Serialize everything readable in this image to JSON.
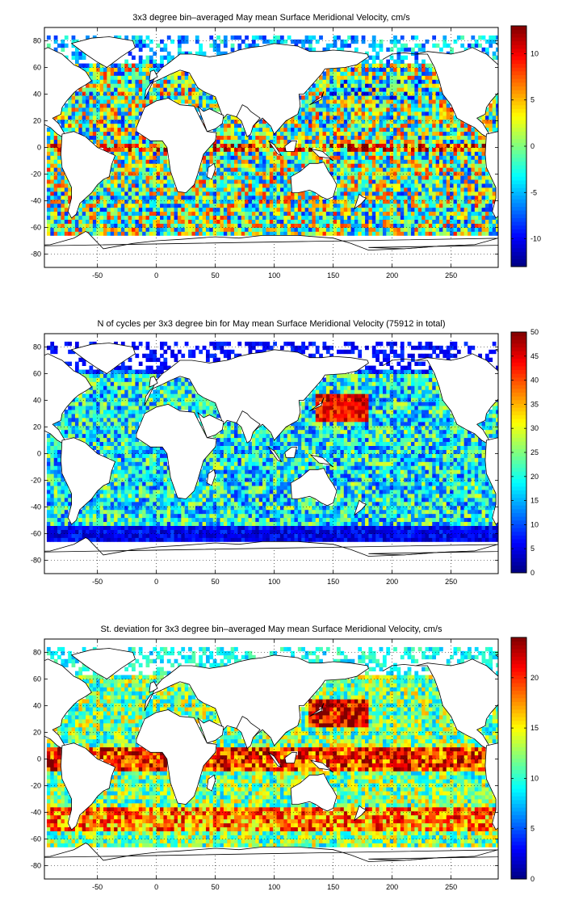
{
  "figure": {
    "background": "#ffffff"
  },
  "chart_data": [
    {
      "type": "heatmap",
      "title": "3x3 degree bin–averaged May mean Surface Meridional Velocity, cm/s",
      "xlabel": "",
      "ylabel": "",
      "xlim": [
        -95,
        290
      ],
      "ylim": [
        -90,
        90
      ],
      "xticks": [
        -50,
        0,
        50,
        100,
        150,
        200,
        250
      ],
      "yticks": [
        -80,
        -60,
        -40,
        -20,
        0,
        20,
        40,
        60,
        80
      ],
      "grid": true,
      "grid_style": "dotted",
      "bin_size_deg": 3,
      "color_range": [
        -13,
        13
      ],
      "colorbar_ticks": [
        -10,
        -5,
        0,
        5,
        10
      ],
      "colormap": "jet",
      "field": "velocity",
      "seed": 11
    },
    {
      "type": "heatmap",
      "title": "N of cycles per 3x3 degree bin for May mean Surface Meridional Velocity (75912 in total)",
      "xlabel": "",
      "ylabel": "",
      "xlim": [
        -95,
        290
      ],
      "ylim": [
        -90,
        90
      ],
      "xticks": [
        -50,
        0,
        50,
        100,
        150,
        200,
        250
      ],
      "yticks": [
        -80,
        -60,
        -40,
        -20,
        0,
        20,
        40,
        60,
        80
      ],
      "grid": true,
      "grid_style": "dotted",
      "bin_size_deg": 3,
      "color_range": [
        0,
        50
      ],
      "colorbar_ticks": [
        0,
        5,
        10,
        15,
        20,
        25,
        30,
        35,
        40,
        45,
        50
      ],
      "colormap": "jet",
      "field": "count",
      "total_cycles": 75912,
      "seed": 23
    },
    {
      "type": "heatmap",
      "title": "St. deviation for 3x3 degree bin–averaged May mean Surface Meridional Velocity, cm/s",
      "xlabel": "",
      "ylabel": "",
      "xlim": [
        -95,
        290
      ],
      "ylim": [
        -90,
        90
      ],
      "xticks": [
        -50,
        0,
        50,
        100,
        150,
        200,
        250
      ],
      "yticks": [
        -80,
        -60,
        -40,
        -20,
        0,
        20,
        40,
        60,
        80
      ],
      "grid": true,
      "grid_style": "dotted",
      "bin_size_deg": 3,
      "color_range": [
        0,
        24
      ],
      "colorbar_ticks": [
        0,
        5,
        10,
        15,
        20
      ],
      "colormap": "jet",
      "field": "stdev",
      "seed": 37
    }
  ],
  "land_outlines": [
    {
      "name": "north-america",
      "lon": [
        -168,
        -160,
        -150,
        -140,
        -130,
        -124,
        -120,
        -117,
        -110,
        -105,
        -97,
        -90,
        -84,
        -80,
        -77,
        -83,
        -88,
        -81,
        -80,
        -76,
        -70,
        -66,
        -60,
        -55,
        -60,
        -65,
        -70,
        -75,
        -80,
        -85,
        -92,
        -100,
        -110,
        -120,
        -130,
        -140,
        -150,
        -160,
        -168
      ],
      "lat": [
        66,
        70,
        71,
        70,
        70,
        60,
        50,
        40,
        32,
        22,
        18,
        15,
        10,
        8,
        9,
        18,
        22,
        25,
        30,
        35,
        41,
        44,
        47,
        50,
        57,
        60,
        62,
        66,
        70,
        72,
        75,
        72,
        70,
        71,
        72,
        70,
        71,
        70,
        66
      ]
    },
    {
      "name": "greenland",
      "lon": [
        -72,
        -55,
        -40,
        -20,
        -18,
        -30,
        -42,
        -50,
        -60,
        -72
      ],
      "lat": [
        78,
        82,
        83,
        80,
        75,
        68,
        60,
        64,
        70,
        78
      ]
    },
    {
      "name": "south-america",
      "lon": [
        -80,
        -75,
        -70,
        -60,
        -50,
        -45,
        -35,
        -38,
        -40,
        -45,
        -50,
        -55,
        -60,
        -65,
        -68,
        -72,
        -75,
        -72,
        -72,
        -80,
        -81,
        -80
      ],
      "lat": [
        10,
        11,
        12,
        8,
        0,
        -2,
        -6,
        -13,
        -22,
        -24,
        -28,
        -34,
        -38,
        -42,
        -50,
        -53,
        -48,
        -38,
        -30,
        -15,
        -5,
        10
      ]
    },
    {
      "name": "africa",
      "lon": [
        -17,
        -10,
        0,
        10,
        20,
        32,
        40,
        43,
        51,
        50,
        40,
        35,
        32,
        25,
        18,
        12,
        9,
        5,
        -5,
        -17,
        -17
      ],
      "lat": [
        15,
        30,
        35,
        37,
        32,
        31,
        17,
        12,
        11,
        5,
        -5,
        -20,
        -28,
        -34,
        -33,
        -18,
        0,
        5,
        5,
        12,
        15
      ]
    },
    {
      "name": "madagascar",
      "lon": [
        44,
        49,
        50,
        47,
        43,
        44
      ],
      "lat": [
        -15,
        -12,
        -16,
        -24,
        -22,
        -15
      ]
    },
    {
      "name": "eurasia",
      "lon": [
        -10,
        -9,
        -5,
        0,
        5,
        12,
        20,
        28,
        35,
        40,
        50,
        55,
        57,
        60,
        68,
        75,
        80,
        90,
        97,
        100,
        105,
        110,
        120,
        122,
        121,
        125,
        130,
        140,
        143,
        160,
        170,
        180,
        179,
        165,
        150,
        140,
        130,
        120,
        110,
        100,
        90,
        80,
        70,
        60,
        45,
        30,
        20,
        10,
        5,
        0,
        -10
      ],
      "lat": [
        36,
        43,
        48,
        50,
        52,
        55,
        58,
        56,
        45,
        42,
        38,
        26,
        22,
        25,
        23,
        20,
        15,
        22,
        16,
        10,
        15,
        20,
        25,
        31,
        40,
        40,
        45,
        55,
        59,
        60,
        62,
        68,
        70,
        72,
        73,
        72,
        72,
        76,
        77,
        78,
        76,
        75,
        73,
        70,
        68,
        70,
        70,
        63,
        60,
        55,
        36
      ]
    },
    {
      "name": "arabia",
      "lon": [
        35,
        40,
        45,
        52,
        57,
        56,
        50,
        43,
        35
      ],
      "lat": [
        31,
        27,
        29,
        26,
        24,
        18,
        14,
        12,
        31
      ]
    },
    {
      "name": "india",
      "lon": [
        68,
        72,
        77,
        80,
        82,
        88,
        80,
        77,
        73,
        68
      ],
      "lat": [
        23,
        20,
        8,
        10,
        16,
        22,
        27,
        30,
        32,
        23
      ]
    },
    {
      "name": "australia",
      "lon": [
        114,
        122,
        130,
        137,
        142,
        146,
        150,
        153,
        150,
        145,
        140,
        135,
        130,
        120,
        115,
        114
      ],
      "lat": [
        -22,
        -18,
        -12,
        -12,
        -11,
        -18,
        -23,
        -28,
        -37,
        -39,
        -37,
        -34,
        -32,
        -34,
        -34,
        -22
      ]
    },
    {
      "name": "new-zealand",
      "lon": [
        172,
        175,
        178,
        174,
        168,
        172
      ],
      "lat": [
        -35,
        -37,
        -38,
        -42,
        -46,
        -35
      ]
    },
    {
      "name": "borneo",
      "lon": [
        109,
        115,
        119,
        117,
        110,
        109
      ],
      "lat": [
        1,
        5,
        5,
        -3,
        -3,
        1
      ]
    },
    {
      "name": "sumatra",
      "lon": [
        95,
        100,
        106,
        103,
        95
      ],
      "lat": [
        5,
        2,
        -6,
        -5,
        5
      ]
    },
    {
      "name": "new-guinea",
      "lon": [
        131,
        141,
        150,
        146,
        138,
        131
      ],
      "lat": [
        -1,
        -3,
        -10,
        -8,
        -7,
        -1
      ]
    },
    {
      "name": "japan",
      "lon": [
        130,
        135,
        140,
        142,
        140,
        135,
        130
      ],
      "lat": [
        32,
        34,
        36,
        42,
        38,
        35,
        32
      ]
    },
    {
      "name": "uk",
      "lon": [
        -6,
        -3,
        1,
        -2,
        -5,
        -6
      ],
      "lat": [
        50,
        51,
        53,
        58,
        57,
        50
      ]
    },
    {
      "name": "antarctica",
      "lon": [
        -180,
        -150,
        -120,
        -90,
        -70,
        -60,
        -58,
        -45,
        -20,
        0,
        20,
        50,
        70,
        90,
        120,
        150,
        165,
        180,
        210,
        240,
        270,
        290,
        300,
        -180
      ],
      "lat": [
        -75,
        -76,
        -74,
        -73,
        -68,
        -63,
        -64,
        -76,
        -72,
        -70,
        -69,
        -67,
        -68,
        -66,
        -66,
        -68,
        -72,
        -77,
        -76,
        -74,
        -73,
        -72,
        -68,
        -75
      ]
    }
  ]
}
